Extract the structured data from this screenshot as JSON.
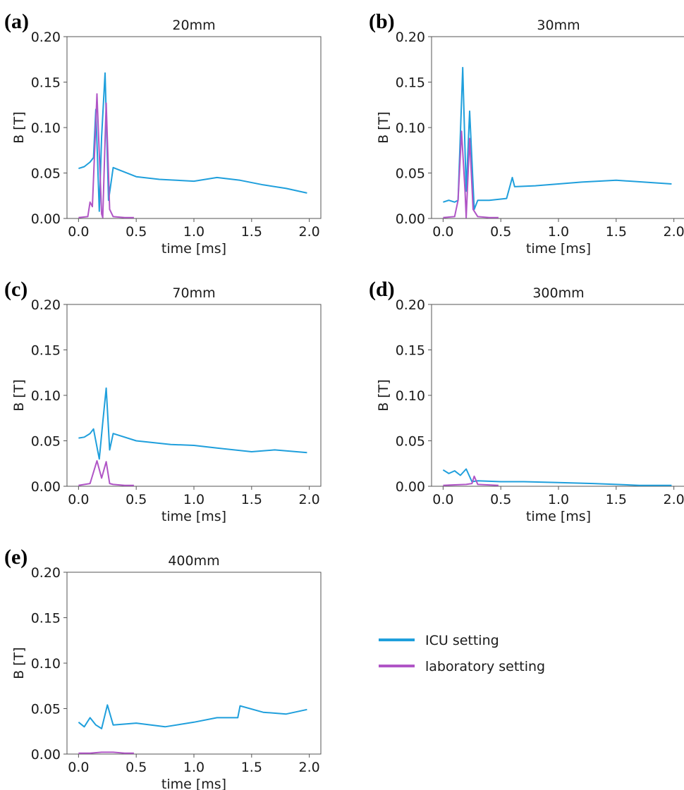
{
  "figure": {
    "legend": {
      "entries": [
        {
          "label": "ICU setting",
          "color": "#1f9fdc"
        },
        {
          "label": "laboratory setting",
          "color": "#b055c6"
        }
      ]
    }
  },
  "chart_data": [
    {
      "type": "line",
      "panel_label": "(a)",
      "title": "20mm",
      "xlabel": "time [ms]",
      "ylabel": "B [T]",
      "xlim": [
        0,
        2.0
      ],
      "ylim": [
        0,
        0.2
      ],
      "xticks": [
        "0.0",
        "0.5",
        "1.0",
        "1.5",
        "2.0"
      ],
      "yticks": [
        "0.00",
        "0.05",
        "0.10",
        "0.15",
        "0.20"
      ],
      "series": [
        {
          "name": "ICU setting",
          "color": "#1f9fdc",
          "x": [
            0,
            0.05,
            0.1,
            0.13,
            0.15,
            0.18,
            0.2,
            0.23,
            0.26,
            0.3,
            0.5,
            0.7,
            1.0,
            1.2,
            1.4,
            1.6,
            1.8,
            1.98
          ],
          "y": [
            0.055,
            0.057,
            0.062,
            0.067,
            0.12,
            0.008,
            0.09,
            0.16,
            0.02,
            0.056,
            0.046,
            0.043,
            0.041,
            0.045,
            0.042,
            0.037,
            0.033,
            0.028
          ]
        },
        {
          "name": "laboratory setting",
          "color": "#b055c6",
          "x": [
            0,
            0.08,
            0.1,
            0.12,
            0.16,
            0.2,
            0.21,
            0.24,
            0.27,
            0.3,
            0.4,
            0.48
          ],
          "y": [
            0.001,
            0.002,
            0.018,
            0.013,
            0.137,
            0.005,
            0.001,
            0.127,
            0.01,
            0.002,
            0.001,
            0.001
          ]
        }
      ]
    },
    {
      "type": "line",
      "panel_label": "(b)",
      "title": "30mm",
      "xlabel": "time [ms]",
      "ylabel": "B [T]",
      "xlim": [
        0,
        2.0
      ],
      "ylim": [
        0,
        0.2
      ],
      "xticks": [
        "0.0",
        "0.5",
        "1.0",
        "1.5",
        "2.0"
      ],
      "yticks": [
        "0.00",
        "0.05",
        "0.10",
        "0.15",
        "0.20"
      ],
      "series": [
        {
          "name": "ICU setting",
          "color": "#1f9fdc",
          "x": [
            0,
            0.05,
            0.1,
            0.13,
            0.17,
            0.2,
            0.23,
            0.27,
            0.3,
            0.4,
            0.55,
            0.6,
            0.62,
            0.8,
            1.0,
            1.2,
            1.5,
            1.98
          ],
          "y": [
            0.018,
            0.02,
            0.018,
            0.02,
            0.166,
            0.03,
            0.118,
            0.01,
            0.02,
            0.02,
            0.022,
            0.045,
            0.035,
            0.036,
            0.038,
            0.04,
            0.042,
            0.038
          ]
        },
        {
          "name": "laboratory setting",
          "color": "#b055c6",
          "x": [
            0,
            0.1,
            0.13,
            0.16,
            0.19,
            0.2,
            0.23,
            0.26,
            0.3,
            0.4,
            0.48
          ],
          "y": [
            0.001,
            0.002,
            0.02,
            0.096,
            0.03,
            0.001,
            0.088,
            0.01,
            0.002,
            0.001,
            0.001
          ]
        }
      ]
    },
    {
      "type": "line",
      "panel_label": "(c)",
      "title": "70mm",
      "xlabel": "time [ms]",
      "ylabel": "B [T]",
      "xlim": [
        0,
        2.0
      ],
      "ylim": [
        0,
        0.2
      ],
      "xticks": [
        "0.0",
        "0.5",
        "1.0",
        "1.5",
        "2.0"
      ],
      "yticks": [
        "0.00",
        "0.05",
        "0.10",
        "0.15",
        "0.20"
      ],
      "series": [
        {
          "name": "ICU setting",
          "color": "#1f9fdc",
          "x": [
            0,
            0.05,
            0.1,
            0.13,
            0.18,
            0.21,
            0.24,
            0.27,
            0.3,
            0.5,
            0.8,
            1.0,
            1.2,
            1.5,
            1.7,
            1.98
          ],
          "y": [
            0.053,
            0.054,
            0.058,
            0.063,
            0.03,
            0.07,
            0.108,
            0.04,
            0.058,
            0.05,
            0.046,
            0.045,
            0.042,
            0.038,
            0.04,
            0.037
          ]
        },
        {
          "name": "laboratory setting",
          "color": "#b055c6",
          "x": [
            0,
            0.1,
            0.16,
            0.2,
            0.24,
            0.27,
            0.3,
            0.4,
            0.48
          ],
          "y": [
            0.001,
            0.003,
            0.028,
            0.009,
            0.027,
            0.003,
            0.002,
            0.001,
            0.001
          ]
        }
      ]
    },
    {
      "type": "line",
      "panel_label": "(d)",
      "title": "300mm",
      "xlabel": "time [ms]",
      "ylabel": "B [T]",
      "xlim": [
        0,
        2.0
      ],
      "ylim": [
        0,
        0.2
      ],
      "xticks": [
        "0.0",
        "0.5",
        "1.0",
        "1.5",
        "2.0"
      ],
      "yticks": [
        "0.00",
        "0.05",
        "0.10",
        "0.15",
        "0.20"
      ],
      "series": [
        {
          "name": "ICU setting",
          "color": "#1f9fdc",
          "x": [
            0,
            0.05,
            0.1,
            0.15,
            0.2,
            0.25,
            0.3,
            0.5,
            0.7,
            1.0,
            1.3,
            1.5,
            1.7,
            1.98
          ],
          "y": [
            0.018,
            0.014,
            0.017,
            0.012,
            0.019,
            0.005,
            0.006,
            0.005,
            0.005,
            0.004,
            0.003,
            0.002,
            0.001,
            0.001
          ]
        },
        {
          "name": "laboratory setting",
          "color": "#b055c6",
          "x": [
            0,
            0.2,
            0.25,
            0.27,
            0.3,
            0.48
          ],
          "y": [
            0.001,
            0.002,
            0.003,
            0.011,
            0.002,
            0.001
          ]
        }
      ]
    },
    {
      "type": "line",
      "panel_label": "(e)",
      "title": "400mm",
      "xlabel": "time [ms]",
      "ylabel": "B [T]",
      "xlim": [
        0,
        2.0
      ],
      "ylim": [
        0,
        0.2
      ],
      "xticks": [
        "0.0",
        "0.5",
        "1.0",
        "1.5",
        "2.0"
      ],
      "yticks": [
        "0.00",
        "0.05",
        "0.10",
        "0.15",
        "0.20"
      ],
      "series": [
        {
          "name": "ICU setting",
          "color": "#1f9fdc",
          "x": [
            0,
            0.05,
            0.1,
            0.15,
            0.2,
            0.25,
            0.3,
            0.5,
            0.75,
            1.0,
            1.2,
            1.38,
            1.4,
            1.6,
            1.8,
            1.98
          ],
          "y": [
            0.035,
            0.03,
            0.04,
            0.032,
            0.028,
            0.054,
            0.032,
            0.034,
            0.03,
            0.035,
            0.04,
            0.04,
            0.053,
            0.046,
            0.044,
            0.049
          ]
        },
        {
          "name": "laboratory setting",
          "color": "#b055c6",
          "x": [
            0,
            0.1,
            0.2,
            0.3,
            0.4,
            0.48
          ],
          "y": [
            0.001,
            0.001,
            0.002,
            0.002,
            0.001,
            0.001
          ]
        }
      ]
    }
  ]
}
